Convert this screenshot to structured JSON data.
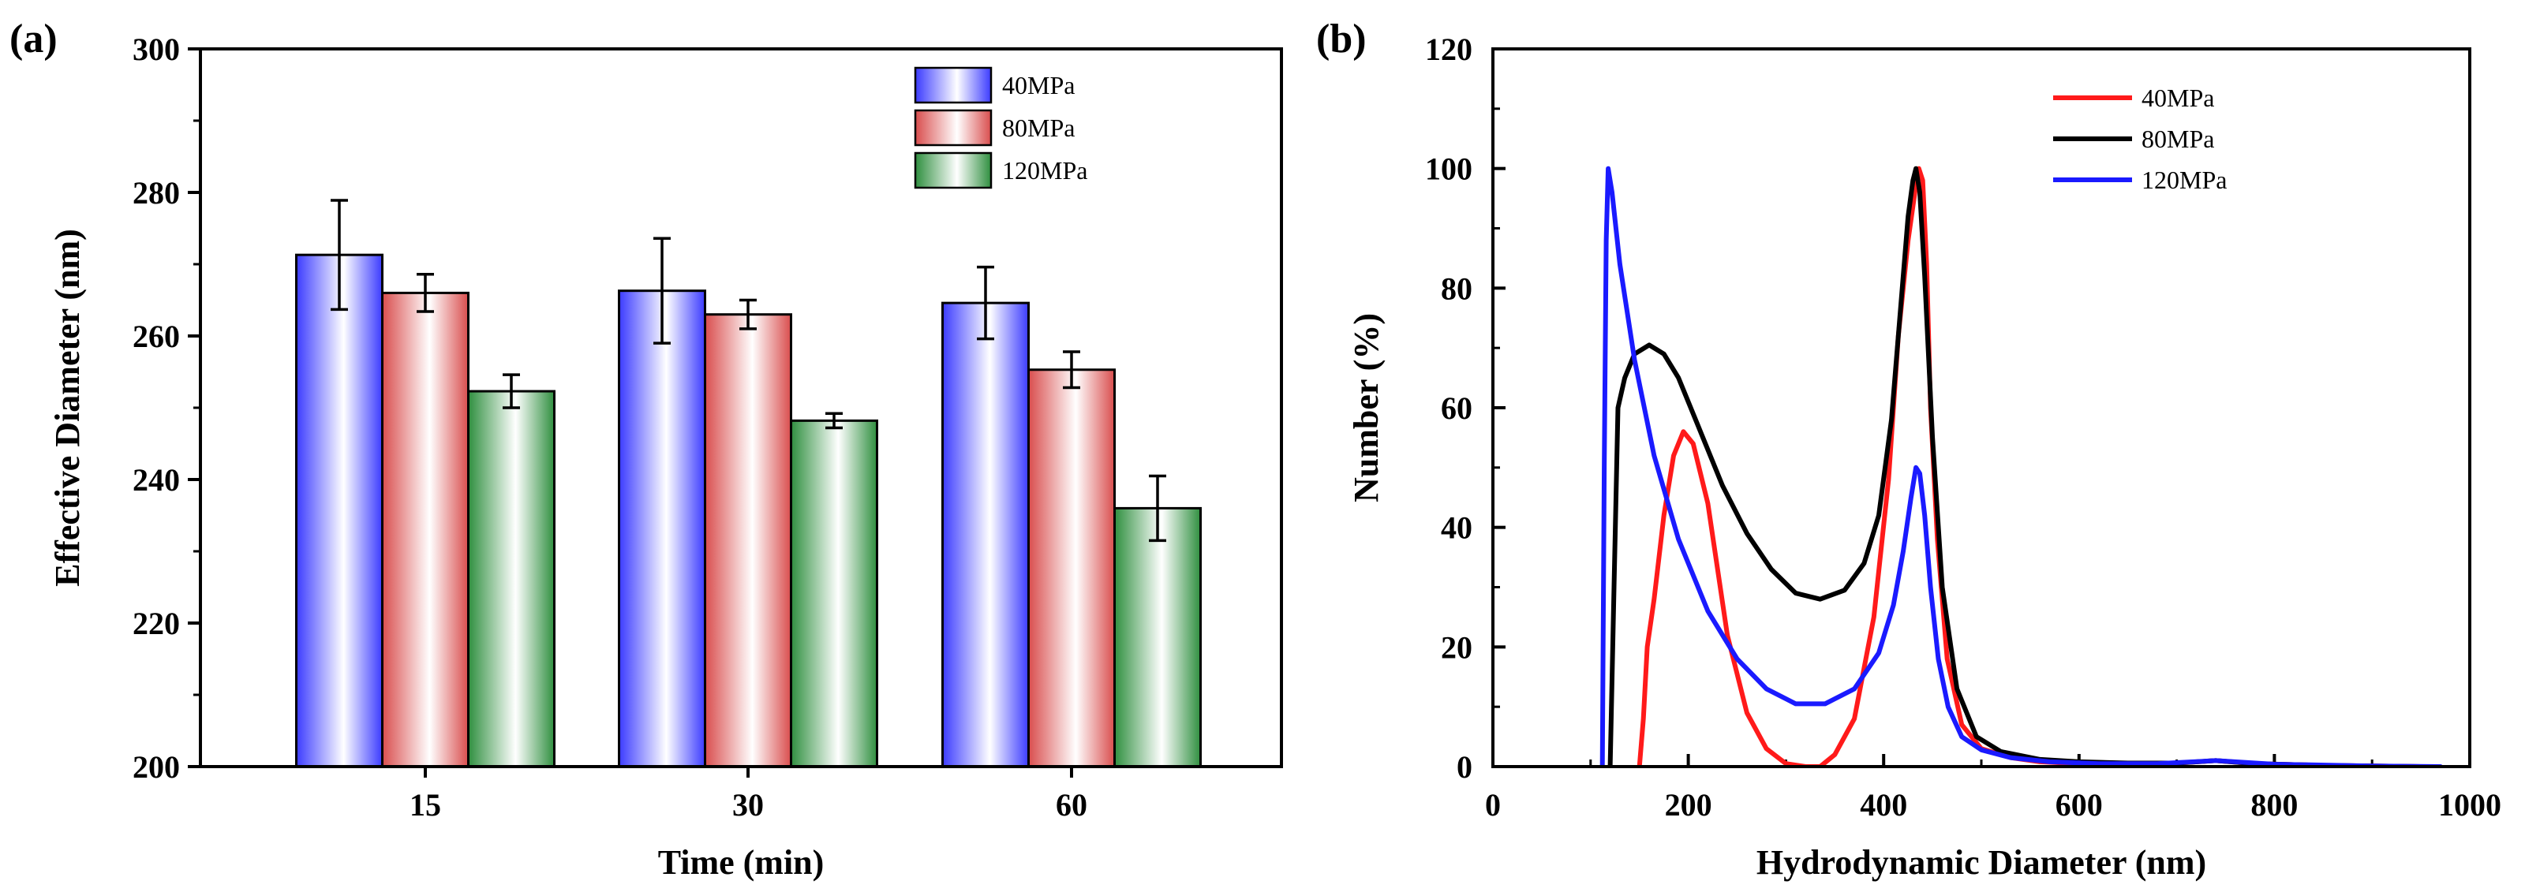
{
  "chart_data": [
    {
      "panel": "(a)",
      "type": "bar",
      "xlabel": "Time (min)",
      "ylabel": "Effective Diameter (nm)",
      "categories": [
        "15",
        "30",
        "60"
      ],
      "ylim": [
        200,
        300
      ],
      "yticks": [
        200,
        220,
        240,
        260,
        280,
        300
      ],
      "legend_position": "top-right",
      "series": [
        {
          "name": "40MPa",
          "color": "#3b3bff",
          "values": [
            271.3,
            266.3,
            264.6
          ],
          "errors": [
            7.6,
            7.3,
            5.0
          ]
        },
        {
          "name": "80MPa",
          "color": "#d94d4d",
          "values": [
            266.0,
            263.0,
            255.3
          ],
          "errors": [
            2.6,
            2.0,
            2.5
          ]
        },
        {
          "name": "120MPa",
          "color": "#2f8f3f",
          "values": [
            252.3,
            248.2,
            236.0
          ],
          "errors": [
            2.3,
            1.0,
            4.5
          ]
        }
      ]
    },
    {
      "panel": "(b)",
      "type": "line",
      "xlabel": "Hydrodynamic Diameter (nm)",
      "ylabel": "Number (%)",
      "xlim": [
        0,
        1000
      ],
      "ylim": [
        0,
        120
      ],
      "xticks": [
        0,
        200,
        400,
        600,
        800,
        1000
      ],
      "yticks": [
        0,
        20,
        40,
        60,
        80,
        100,
        120
      ],
      "legend_position": "top-center",
      "series": [
        {
          "name": "40MPa",
          "color": "#ff1a1a",
          "x": [
            150,
            154,
            158,
            165,
            175,
            185,
            195,
            205,
            220,
            240,
            260,
            280,
            300,
            320,
            335,
            350,
            370,
            390,
            405,
            415,
            425,
            432,
            436,
            440,
            444,
            448,
            455,
            465,
            480,
            500,
            530,
            560,
            600,
            650,
            700,
            740,
            780,
            850,
            950
          ],
          "y": [
            0,
            8,
            20,
            28,
            42,
            52,
            56,
            54,
            44,
            22,
            9,
            3,
            0.5,
            0,
            0,
            2,
            8,
            25,
            48,
            72,
            88,
            96,
            100,
            98,
            84,
            60,
            38,
            18,
            7,
            3,
            1.5,
            0.8,
            0.5,
            0.5,
            0.6,
            1,
            0.5,
            0.2,
            0
          ]
        },
        {
          "name": "80MPa",
          "color": "#000000",
          "x": [
            120,
            124,
            128,
            135,
            145,
            160,
            175,
            190,
            210,
            235,
            260,
            285,
            310,
            335,
            360,
            380,
            395,
            408,
            418,
            425,
            430,
            433,
            437,
            442,
            450,
            460,
            475,
            495,
            520,
            560,
            600,
            650,
            700,
            740,
            780,
            850,
            950
          ],
          "y": [
            0,
            30,
            60,
            65,
            69,
            70.5,
            69,
            65,
            57,
            47,
            39,
            33,
            29,
            28,
            29.5,
            34,
            42,
            58,
            78,
            92,
            98,
            100,
            96,
            82,
            55,
            30,
            13,
            5,
            2.5,
            1.2,
            0.8,
            0.6,
            0.6,
            1,
            0.5,
            0.2,
            0
          ]
        },
        {
          "name": "120MPa",
          "color": "#1a1aff",
          "x": [
            112,
            114,
            116,
            118,
            122,
            130,
            145,
            165,
            190,
            220,
            250,
            280,
            310,
            340,
            370,
            395,
            410,
            420,
            428,
            433,
            437,
            442,
            448,
            456,
            466,
            480,
            500,
            530,
            570,
            620,
            680,
            740,
            800,
            900,
            970
          ],
          "y": [
            0,
            50,
            88,
            100,
            96,
            84,
            68,
            52,
            38,
            26,
            18,
            13,
            10.5,
            10.5,
            13,
            19,
            27,
            36,
            45,
            50,
            49,
            42,
            30,
            18,
            10,
            5,
            2.8,
            1.5,
            0.8,
            0.5,
            0.5,
            1,
            0.4,
            0.1,
            0
          ]
        }
      ]
    }
  ]
}
